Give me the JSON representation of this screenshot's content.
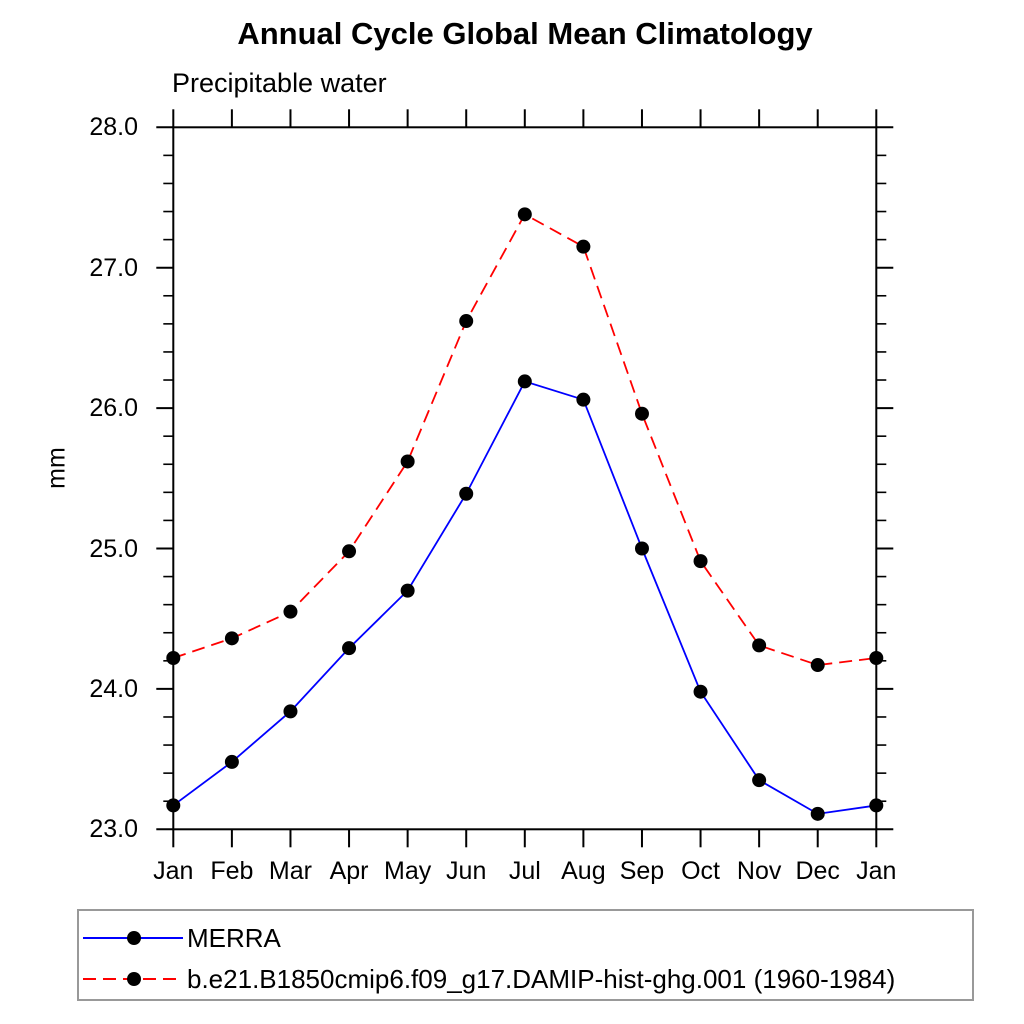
{
  "page": {
    "background": "#ffffff"
  },
  "chart_data": {
    "type": "line",
    "title": "Annual Cycle Global Mean Climatology",
    "subtitle": "Precipitable water",
    "ylabel": "mm",
    "categories": [
      "Jan",
      "Feb",
      "Mar",
      "Apr",
      "May",
      "Jun",
      "Jul",
      "Aug",
      "Sep",
      "Oct",
      "Nov",
      "Dec",
      "Jan"
    ],
    "ylim": [
      23.0,
      28.0
    ],
    "y_ticks": [
      28,
      27,
      26,
      25,
      24,
      23
    ],
    "y_tick_labels": [
      "28.0",
      "27.0",
      "26.0",
      "25.0",
      "24.0",
      "23.0"
    ],
    "y_minor_step": 0.2,
    "grid": false,
    "frame_color": "#000000",
    "marker": "filled-circle",
    "legend_position": "bottom-left-box",
    "series": [
      {
        "name": "MERRA",
        "color": "#0000ff",
        "line_style": "solid",
        "marker_color": "#000000",
        "values": [
          23.17,
          23.48,
          23.84,
          24.29,
          24.7,
          25.39,
          26.19,
          26.06,
          25.0,
          23.98,
          23.35,
          23.11,
          23.17
        ]
      },
      {
        "name": "b.e21.B1850cmip6.f09_g17.DAMIP-hist-ghg.001 (1960-1984)",
        "color": "#ff0000",
        "line_style": "dashed",
        "marker_color": "#000000",
        "values": [
          24.22,
          24.36,
          24.55,
          24.98,
          25.62,
          26.62,
          27.38,
          27.15,
          25.96,
          24.91,
          24.31,
          24.17,
          24.22
        ]
      }
    ]
  }
}
